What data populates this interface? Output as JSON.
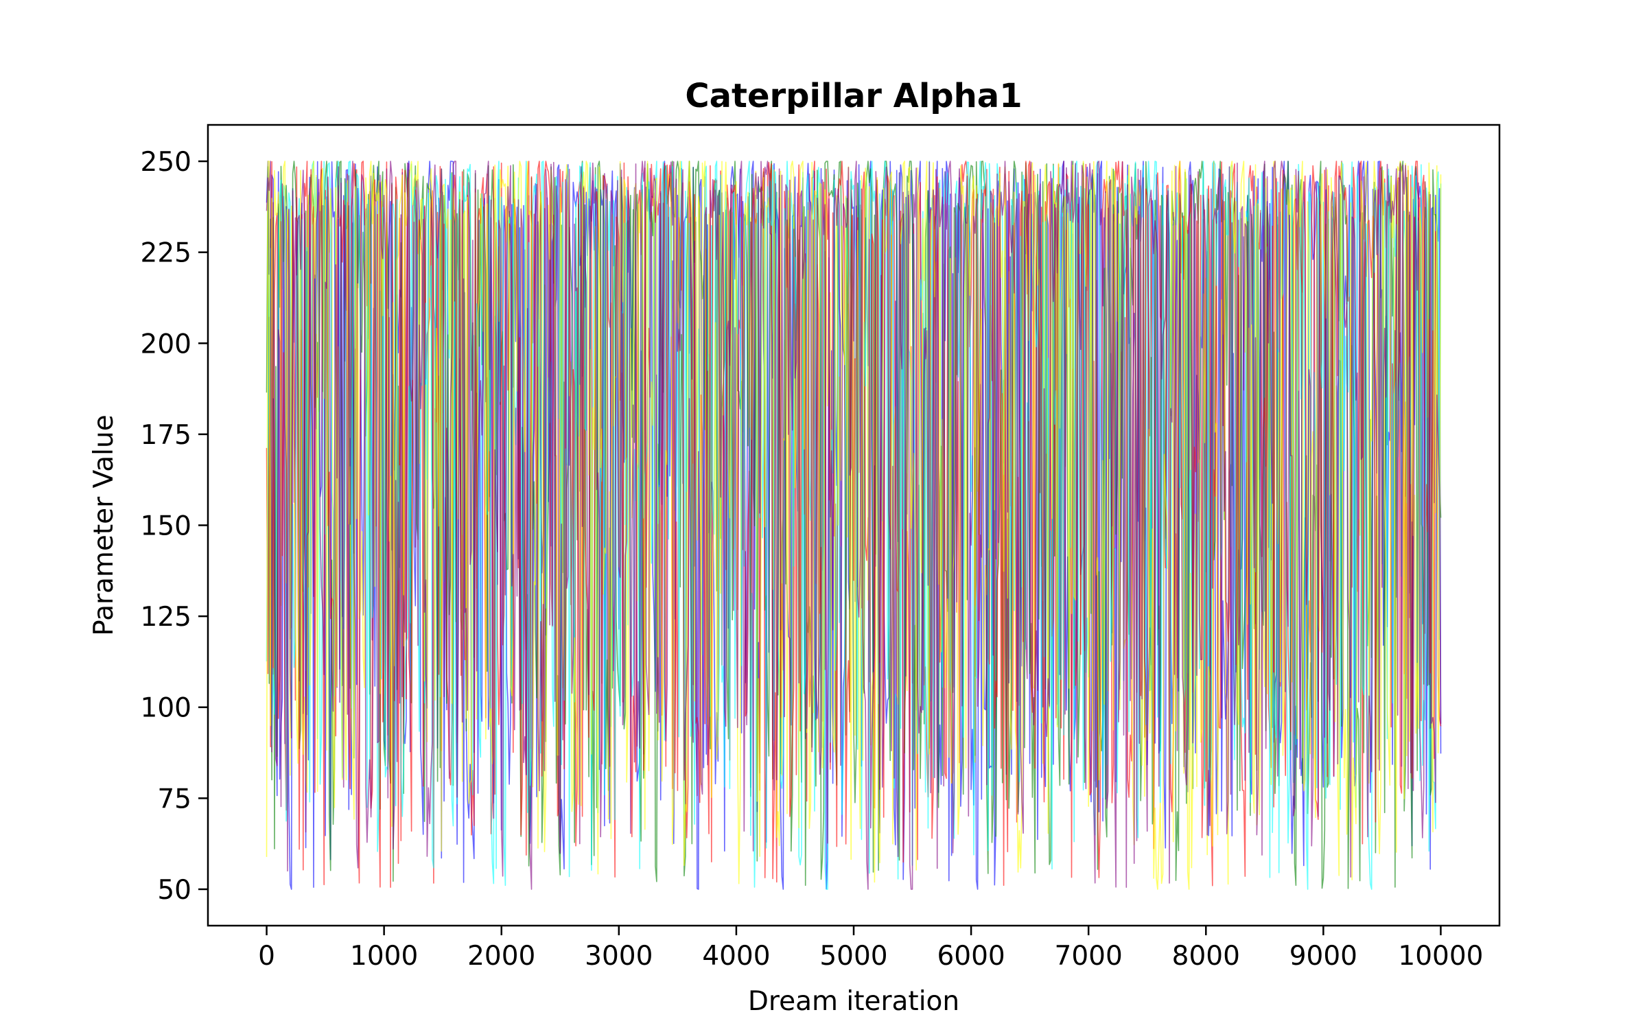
{
  "chart_data": {
    "type": "line",
    "title": "Caterpillar Alpha1",
    "xlabel": "Dream iteration",
    "ylabel": "Parameter Value",
    "xlim": [
      -500,
      10500
    ],
    "ylim": [
      40,
      260
    ],
    "data_x_range": [
      0,
      10000
    ],
    "data_y_range": [
      50,
      250
    ],
    "xticks": [
      0,
      1000,
      2000,
      3000,
      4000,
      5000,
      6000,
      7000,
      8000,
      9000,
      10000
    ],
    "yticks": [
      50,
      75,
      100,
      125,
      150,
      175,
      200,
      225,
      250
    ],
    "grid": false,
    "legend": "none",
    "series": [
      {
        "color": "#0000ff",
        "alpha": 0.6
      },
      {
        "color": "#008000",
        "alpha": 0.6
      },
      {
        "color": "#ff0000",
        "alpha": 0.6
      },
      {
        "color": "#00ffff",
        "alpha": 0.6
      },
      {
        "color": "#ffff00",
        "alpha": 0.6
      },
      {
        "color": "#800080",
        "alpha": 0.6
      }
    ]
  }
}
